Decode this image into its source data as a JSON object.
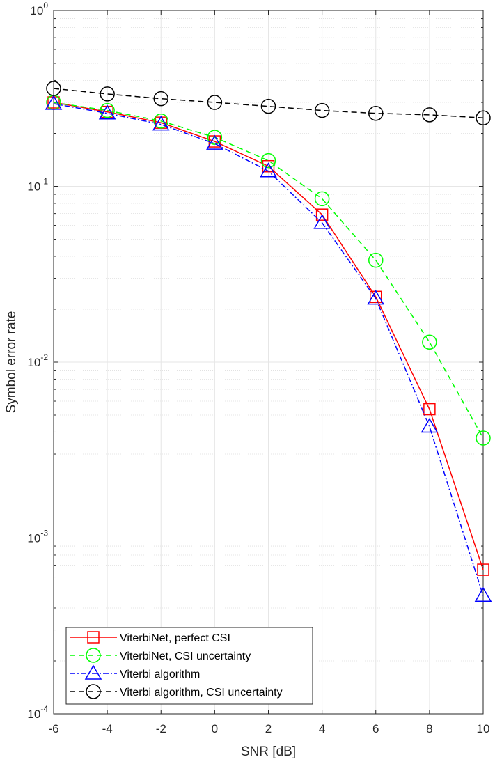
{
  "chart_data": {
    "type": "line",
    "xlabel": "SNR [dB]",
    "ylabel": "Symbol error rate",
    "x": [
      -6,
      -4,
      -2,
      0,
      2,
      4,
      6,
      8,
      10
    ],
    "xlim": [
      -6,
      10
    ],
    "ylim": [
      0.0001,
      1
    ],
    "yscale": "log",
    "grid": true,
    "minor_grid": true,
    "legend_position": "bottom-left",
    "x_tick_labels": [
      "-6",
      "-4",
      "-2",
      "0",
      "2",
      "4",
      "6",
      "8",
      "10"
    ],
    "y_tick_labels": [
      {
        "base": "10",
        "exp": "-4"
      },
      {
        "base": "10",
        "exp": "-3"
      },
      {
        "base": "10",
        "exp": "-2"
      },
      {
        "base": "10",
        "exp": "-1"
      },
      {
        "base": "10",
        "exp": "0"
      }
    ],
    "series": [
      {
        "name": "ViterbiNet, perfect CSI",
        "color": "#ff0000",
        "line_style": "solid",
        "marker": "square",
        "values": [
          0.3,
          0.265,
          0.23,
          0.18,
          0.13,
          0.069,
          0.0235,
          0.0054,
          0.00066
        ]
      },
      {
        "name": "ViterbiNet, CSI uncertainty",
        "color": "#00ff00",
        "line_style": "dashed",
        "marker": "circle",
        "values": [
          0.3,
          0.27,
          0.235,
          0.19,
          0.14,
          0.085,
          0.038,
          0.013,
          0.0037
        ]
      },
      {
        "name": "Viterbi algorithm",
        "color": "#0000ff",
        "line_style": "dash-dot",
        "marker": "triangle",
        "values": [
          0.295,
          0.26,
          0.225,
          0.175,
          0.122,
          0.062,
          0.023,
          0.0043,
          0.00047
        ]
      },
      {
        "name": "Viterbi algorithm, CSI uncertainty",
        "color": "#000000",
        "line_style": "dashed",
        "marker": "circle",
        "values": [
          0.36,
          0.335,
          0.315,
          0.3,
          0.285,
          0.27,
          0.26,
          0.255,
          0.245
        ]
      }
    ]
  }
}
